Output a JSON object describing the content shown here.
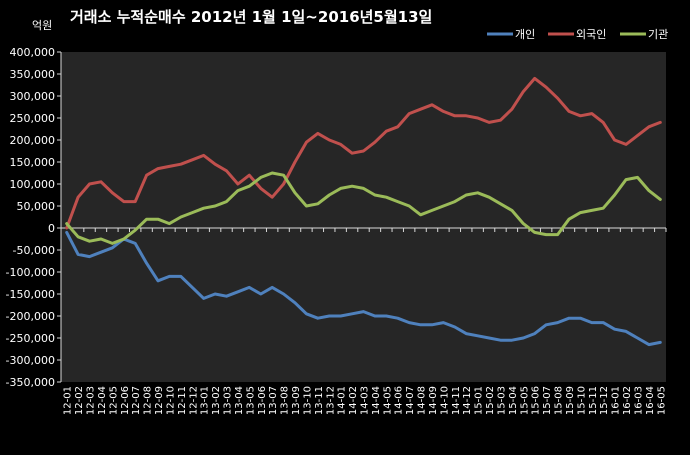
{
  "chart_data": {
    "type": "line",
    "title": "거래소 누적순매수 2012년 1월 1일~2016년5월13일",
    "unit_label": "억원",
    "ylim": [
      -350000,
      400000
    ],
    "yticks": [
      400000,
      350000,
      300000,
      250000,
      200000,
      150000,
      100000,
      50000,
      0,
      -50000,
      -100000,
      -150000,
      -200000,
      -250000,
      -300000,
      -350000
    ],
    "ytick_labels": [
      "400,000",
      "350,000",
      "300,000",
      "250,000",
      "200,000",
      "150,000",
      "100,000",
      "50,000",
      "0",
      "-50,000",
      "-100,000",
      "-150,000",
      "-200,000",
      "-250,000",
      "-300,000",
      "-350,000"
    ],
    "categories": [
      "12-01",
      "12-02",
      "12-03",
      "12-04",
      "12-05",
      "12-06",
      "12-07",
      "12-08",
      "12-09",
      "12-10",
      "12-11",
      "12-12",
      "13-01",
      "13-02",
      "13-03",
      "13-04",
      "13-05",
      "13-06",
      "13-07",
      "13-08",
      "13-09",
      "13-10",
      "13-11",
      "13-12",
      "14-01",
      "14-02",
      "14-03",
      "14-04",
      "14-05",
      "14-06",
      "14-07",
      "14-08",
      "14-09",
      "14-10",
      "14-11",
      "14-12",
      "15-01",
      "15-02",
      "15-03",
      "15-04",
      "15-05",
      "15-06",
      "15-07",
      "15-08",
      "15-09",
      "15-10",
      "15-11",
      "15-12",
      "16-01",
      "16-02",
      "16-03",
      "16-04",
      "16-05"
    ],
    "legend_position": "top-right",
    "grid": false,
    "series": [
      {
        "name": "개인",
        "color": "#4f81bd",
        "values": [
          -10000,
          -60000,
          -65000,
          -55000,
          -45000,
          -25000,
          -35000,
          -80000,
          -120000,
          -110000,
          -110000,
          -135000,
          -160000,
          -150000,
          -155000,
          -145000,
          -135000,
          -150000,
          -135000,
          -150000,
          -170000,
          -195000,
          -205000,
          -200000,
          -200000,
          -195000,
          -190000,
          -200000,
          -200000,
          -205000,
          -215000,
          -220000,
          -220000,
          -215000,
          -225000,
          -240000,
          -245000,
          -250000,
          -255000,
          -255000,
          -250000,
          -240000,
          -220000,
          -215000,
          -205000,
          -205000,
          -215000,
          -215000,
          -230000,
          -235000,
          -250000,
          -265000,
          -260000
        ]
      },
      {
        "name": "외국인",
        "color": "#c0504d",
        "values": [
          0,
          70000,
          100000,
          105000,
          80000,
          60000,
          60000,
          120000,
          135000,
          140000,
          145000,
          155000,
          165000,
          145000,
          130000,
          100000,
          120000,
          90000,
          70000,
          100000,
          150000,
          195000,
          215000,
          200000,
          190000,
          170000,
          175000,
          195000,
          220000,
          230000,
          260000,
          270000,
          280000,
          265000,
          255000,
          255000,
          250000,
          240000,
          245000,
          270000,
          310000,
          340000,
          320000,
          295000,
          265000,
          255000,
          260000,
          240000,
          200000,
          190000,
          210000,
          230000,
          240000
        ]
      },
      {
        "name": "기관",
        "color": "#9bbb59",
        "values": [
          10000,
          -20000,
          -30000,
          -25000,
          -35000,
          -25000,
          -5000,
          20000,
          20000,
          10000,
          25000,
          35000,
          45000,
          50000,
          60000,
          85000,
          95000,
          115000,
          125000,
          120000,
          80000,
          50000,
          55000,
          75000,
          90000,
          95000,
          90000,
          75000,
          70000,
          60000,
          50000,
          30000,
          40000,
          50000,
          60000,
          75000,
          80000,
          70000,
          55000,
          40000,
          10000,
          -10000,
          -15000,
          -15000,
          20000,
          35000,
          40000,
          45000,
          75000,
          110000,
          115000,
          85000,
          65000
        ]
      }
    ]
  }
}
